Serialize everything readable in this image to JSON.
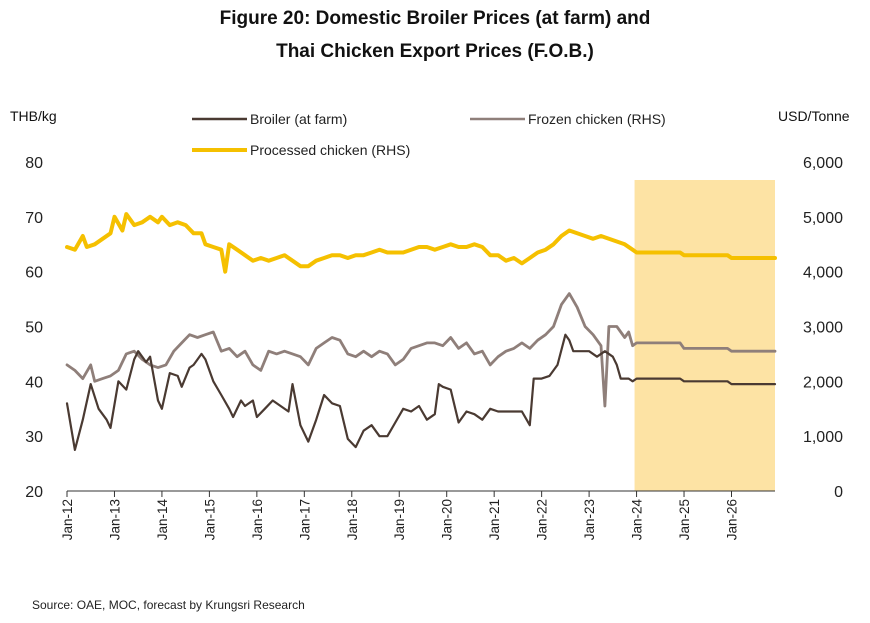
{
  "title_line1": "Figure 20: Domestic Broiler Prices (at farm) and",
  "title_line2": "Thai Chicken Export Prices (F.O.B.)",
  "left_unit": "THB/kg",
  "right_unit": "USD/Tonne",
  "source": "Source: OAE, MOC, forecast by Krungsri Research",
  "colors": {
    "broiler": "#4a3a32",
    "frozen": "#8f7f7a",
    "processed": "#f5c000",
    "forecast_band": "#fde3a4",
    "axis": "#333333"
  },
  "chart_data": {
    "type": "line",
    "title": "Figure 20: Domestic Broiler Prices (at farm) and Thai Chicken Export Prices (F.O.B.)",
    "xlabel": "",
    "ylabel": "THB/kg",
    "ylabel_right": "USD/Tonne",
    "ylim": [
      20,
      80
    ],
    "ylim_right": [
      0,
      6000
    ],
    "y_ticks": [
      "20",
      "30",
      "40",
      "50",
      "60",
      "70",
      "80"
    ],
    "y_ticks_right": [
      "0",
      "1,000",
      "2,000",
      "3,000",
      "4,000",
      "5,000",
      "6,000"
    ],
    "x_ticks": [
      "Jan-12",
      "Jan-13",
      "Jan-14",
      "Jan-15",
      "Jan-16",
      "Jan-17",
      "Jan-18",
      "Jan-19",
      "Jan-20",
      "Jan-21",
      "Jan-22",
      "Jan-23",
      "Jan-24",
      "Jan-25",
      "Jan-26"
    ],
    "x_range": [
      "2012-01",
      "2026-12"
    ],
    "forecast_period": [
      "2024-01",
      "2026-12"
    ],
    "legend_position": "top",
    "series": [
      {
        "name": "Broiler (at farm)",
        "axis": "left",
        "points": [
          [
            "2012-01",
            36
          ],
          [
            "2012-03",
            27.5
          ],
          [
            "2012-05",
            33
          ],
          [
            "2012-07",
            39.5
          ],
          [
            "2012-09",
            35
          ],
          [
            "2012-11",
            33
          ],
          [
            "2012-12",
            31.5
          ],
          [
            "2013-02",
            40
          ],
          [
            "2013-04",
            38.5
          ],
          [
            "2013-06",
            44
          ],
          [
            "2013-07",
            45.5
          ],
          [
            "2013-09",
            43.5
          ],
          [
            "2013-10",
            44.5
          ],
          [
            "2013-12",
            36.5
          ],
          [
            "2014-01",
            35
          ],
          [
            "2014-03",
            41.5
          ],
          [
            "2014-05",
            41
          ],
          [
            "2014-06",
            39
          ],
          [
            "2014-08",
            42.5
          ],
          [
            "2014-09",
            43
          ],
          [
            "2014-11",
            45
          ],
          [
            "2014-12",
            44
          ],
          [
            "2015-02",
            40
          ],
          [
            "2015-04",
            37.5
          ],
          [
            "2015-06",
            35
          ],
          [
            "2015-07",
            33.5
          ],
          [
            "2015-09",
            36.5
          ],
          [
            "2015-10",
            35.5
          ],
          [
            "2015-12",
            36.5
          ],
          [
            "2016-01",
            33.5
          ],
          [
            "2016-03",
            35
          ],
          [
            "2016-05",
            36.5
          ],
          [
            "2016-07",
            35.5
          ],
          [
            "2016-09",
            34.5
          ],
          [
            "2016-10",
            39.5
          ],
          [
            "2016-12",
            32
          ],
          [
            "2017-02",
            29
          ],
          [
            "2017-04",
            33
          ],
          [
            "2017-06",
            37.5
          ],
          [
            "2017-08",
            36
          ],
          [
            "2017-10",
            35.5
          ],
          [
            "2017-12",
            29.5
          ],
          [
            "2018-02",
            28
          ],
          [
            "2018-04",
            31
          ],
          [
            "2018-06",
            32
          ],
          [
            "2018-08",
            30
          ],
          [
            "2018-10",
            30
          ],
          [
            "2018-12",
            32.5
          ],
          [
            "2019-02",
            35
          ],
          [
            "2019-04",
            34.5
          ],
          [
            "2019-06",
            35.5
          ],
          [
            "2019-08",
            33
          ],
          [
            "2019-10",
            34
          ],
          [
            "2019-11",
            39.5
          ],
          [
            "2019-12",
            39
          ],
          [
            "2020-02",
            38.5
          ],
          [
            "2020-04",
            32.5
          ],
          [
            "2020-06",
            34.5
          ],
          [
            "2020-08",
            34
          ],
          [
            "2020-10",
            33
          ],
          [
            "2020-12",
            35
          ],
          [
            "2021-02",
            34.5
          ],
          [
            "2021-04",
            34.5
          ],
          [
            "2021-06",
            34.5
          ],
          [
            "2021-08",
            34.5
          ],
          [
            "2021-10",
            32
          ],
          [
            "2021-11",
            40.5
          ],
          [
            "2022-01",
            40.5
          ],
          [
            "2022-03",
            41
          ],
          [
            "2022-05",
            43
          ],
          [
            "2022-07",
            48.5
          ],
          [
            "2022-08",
            47.5
          ],
          [
            "2022-09",
            45.5
          ],
          [
            "2023-01",
            45.5
          ],
          [
            "2023-03",
            44.5
          ],
          [
            "2023-05",
            45.5
          ],
          [
            "2023-07",
            44.5
          ],
          [
            "2023-08",
            43
          ],
          [
            "2023-09",
            40.5
          ],
          [
            "2023-11",
            40.5
          ],
          [
            "2023-12",
            40
          ],
          [
            "2024-01",
            40.5
          ],
          [
            "2024-12",
            40.5
          ],
          [
            "2025-01",
            40
          ],
          [
            "2025-12",
            40
          ],
          [
            "2026-01",
            39.5
          ],
          [
            "2026-12",
            39.5
          ]
        ]
      },
      {
        "name": "Frozen chicken (RHS)",
        "axis": "right",
        "points": [
          [
            "2012-01",
            2300
          ],
          [
            "2012-03",
            2200
          ],
          [
            "2012-05",
            2050
          ],
          [
            "2012-07",
            2300
          ],
          [
            "2012-08",
            2000
          ],
          [
            "2012-10",
            2050
          ],
          [
            "2012-12",
            2100
          ],
          [
            "2013-02",
            2200
          ],
          [
            "2013-04",
            2500
          ],
          [
            "2013-06",
            2550
          ],
          [
            "2013-08",
            2400
          ],
          [
            "2013-10",
            2300
          ],
          [
            "2013-12",
            2250
          ],
          [
            "2014-02",
            2300
          ],
          [
            "2014-04",
            2550
          ],
          [
            "2014-06",
            2700
          ],
          [
            "2014-08",
            2850
          ],
          [
            "2014-10",
            2800
          ],
          [
            "2014-12",
            2850
          ],
          [
            "2015-02",
            2900
          ],
          [
            "2015-04",
            2550
          ],
          [
            "2015-06",
            2600
          ],
          [
            "2015-08",
            2450
          ],
          [
            "2015-10",
            2550
          ],
          [
            "2015-12",
            2300
          ],
          [
            "2016-02",
            2200
          ],
          [
            "2016-04",
            2550
          ],
          [
            "2016-06",
            2500
          ],
          [
            "2016-08",
            2550
          ],
          [
            "2016-10",
            2500
          ],
          [
            "2016-12",
            2450
          ],
          [
            "2017-02",
            2300
          ],
          [
            "2017-04",
            2600
          ],
          [
            "2017-06",
            2700
          ],
          [
            "2017-08",
            2800
          ],
          [
            "2017-10",
            2750
          ],
          [
            "2017-12",
            2500
          ],
          [
            "2018-02",
            2450
          ],
          [
            "2018-04",
            2550
          ],
          [
            "2018-06",
            2450
          ],
          [
            "2018-08",
            2550
          ],
          [
            "2018-10",
            2500
          ],
          [
            "2018-12",
            2300
          ],
          [
            "2019-02",
            2400
          ],
          [
            "2019-04",
            2600
          ],
          [
            "2019-06",
            2650
          ],
          [
            "2019-08",
            2700
          ],
          [
            "2019-10",
            2700
          ],
          [
            "2019-12",
            2650
          ],
          [
            "2020-02",
            2800
          ],
          [
            "2020-04",
            2600
          ],
          [
            "2020-06",
            2700
          ],
          [
            "2020-08",
            2500
          ],
          [
            "2020-10",
            2550
          ],
          [
            "2020-12",
            2300
          ],
          [
            "2021-02",
            2450
          ],
          [
            "2021-04",
            2550
          ],
          [
            "2021-06",
            2600
          ],
          [
            "2021-08",
            2700
          ],
          [
            "2021-10",
            2600
          ],
          [
            "2021-12",
            2750
          ],
          [
            "2022-02",
            2850
          ],
          [
            "2022-04",
            3000
          ],
          [
            "2022-06",
            3400
          ],
          [
            "2022-08",
            3600
          ],
          [
            "2022-10",
            3350
          ],
          [
            "2022-12",
            3000
          ],
          [
            "2023-02",
            2850
          ],
          [
            "2023-04",
            2650
          ],
          [
            "2023-05",
            1550
          ],
          [
            "2023-06",
            3000
          ],
          [
            "2023-08",
            3000
          ],
          [
            "2023-10",
            2800
          ],
          [
            "2023-11",
            2900
          ],
          [
            "2023-12",
            2650
          ],
          [
            "2024-01",
            2700
          ],
          [
            "2024-12",
            2700
          ],
          [
            "2025-01",
            2600
          ],
          [
            "2025-12",
            2600
          ],
          [
            "2026-01",
            2550
          ],
          [
            "2026-12",
            2550
          ]
        ]
      },
      {
        "name": "Processed chicken (RHS)",
        "axis": "right",
        "points": [
          [
            "2012-01",
            4450
          ],
          [
            "2012-03",
            4400
          ],
          [
            "2012-05",
            4650
          ],
          [
            "2012-06",
            4450
          ],
          [
            "2012-08",
            4500
          ],
          [
            "2012-10",
            4600
          ],
          [
            "2012-12",
            4700
          ],
          [
            "2013-01",
            5000
          ],
          [
            "2013-03",
            4750
          ],
          [
            "2013-04",
            5050
          ],
          [
            "2013-06",
            4850
          ],
          [
            "2013-08",
            4900
          ],
          [
            "2013-10",
            5000
          ],
          [
            "2013-12",
            4900
          ],
          [
            "2014-01",
            5000
          ],
          [
            "2014-03",
            4850
          ],
          [
            "2014-05",
            4900
          ],
          [
            "2014-07",
            4850
          ],
          [
            "2014-09",
            4700
          ],
          [
            "2014-11",
            4700
          ],
          [
            "2014-12",
            4500
          ],
          [
            "2015-02",
            4450
          ],
          [
            "2015-04",
            4400
          ],
          [
            "2015-05",
            4000
          ],
          [
            "2015-06",
            4500
          ],
          [
            "2015-08",
            4400
          ],
          [
            "2015-10",
            4300
          ],
          [
            "2015-12",
            4200
          ],
          [
            "2016-02",
            4250
          ],
          [
            "2016-04",
            4200
          ],
          [
            "2016-06",
            4250
          ],
          [
            "2016-08",
            4300
          ],
          [
            "2016-10",
            4200
          ],
          [
            "2016-12",
            4100
          ],
          [
            "2017-02",
            4100
          ],
          [
            "2017-04",
            4200
          ],
          [
            "2017-06",
            4250
          ],
          [
            "2017-08",
            4300
          ],
          [
            "2017-10",
            4300
          ],
          [
            "2017-12",
            4250
          ],
          [
            "2018-02",
            4300
          ],
          [
            "2018-04",
            4300
          ],
          [
            "2018-06",
            4350
          ],
          [
            "2018-08",
            4400
          ],
          [
            "2018-10",
            4350
          ],
          [
            "2018-12",
            4350
          ],
          [
            "2019-02",
            4350
          ],
          [
            "2019-04",
            4400
          ],
          [
            "2019-06",
            4450
          ],
          [
            "2019-08",
            4450
          ],
          [
            "2019-10",
            4400
          ],
          [
            "2019-12",
            4450
          ],
          [
            "2020-02",
            4500
          ],
          [
            "2020-04",
            4450
          ],
          [
            "2020-06",
            4450
          ],
          [
            "2020-08",
            4500
          ],
          [
            "2020-10",
            4450
          ],
          [
            "2020-12",
            4300
          ],
          [
            "2021-02",
            4300
          ],
          [
            "2021-04",
            4200
          ],
          [
            "2021-06",
            4250
          ],
          [
            "2021-08",
            4150
          ],
          [
            "2021-10",
            4250
          ],
          [
            "2021-12",
            4350
          ],
          [
            "2022-02",
            4400
          ],
          [
            "2022-04",
            4500
          ],
          [
            "2022-06",
            4650
          ],
          [
            "2022-08",
            4750
          ],
          [
            "2022-10",
            4700
          ],
          [
            "2022-12",
            4650
          ],
          [
            "2023-02",
            4600
          ],
          [
            "2023-04",
            4650
          ],
          [
            "2023-06",
            4600
          ],
          [
            "2023-08",
            4550
          ],
          [
            "2023-10",
            4500
          ],
          [
            "2023-12",
            4400
          ],
          [
            "2024-01",
            4350
          ],
          [
            "2024-12",
            4350
          ],
          [
            "2025-01",
            4300
          ],
          [
            "2025-12",
            4300
          ],
          [
            "2026-01",
            4250
          ],
          [
            "2026-12",
            4250
          ]
        ]
      }
    ]
  }
}
